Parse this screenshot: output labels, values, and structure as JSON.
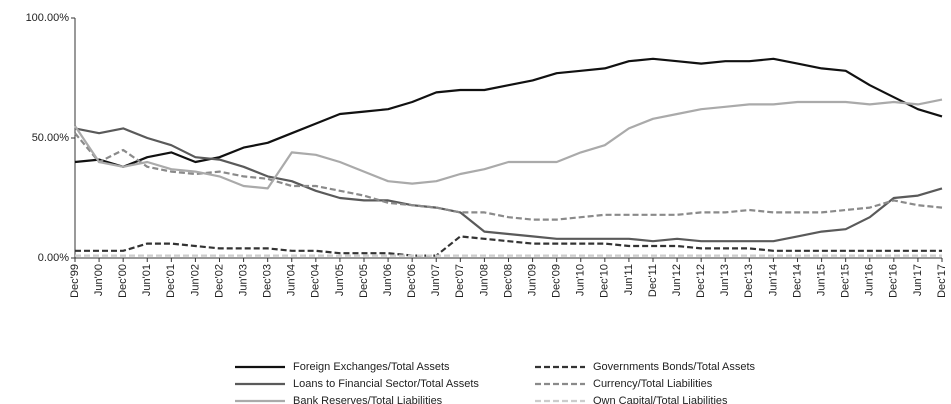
{
  "chart_data": {
    "type": "line",
    "categories": [
      "Dec'99",
      "Jun'00",
      "Dec'00",
      "Jun'01",
      "Dec'01",
      "Jun'02",
      "Dec'02",
      "Jun'03",
      "Dec'03",
      "Jun'04",
      "Dec'04",
      "Jun'05",
      "Dec'05",
      "Jun'06",
      "Dec'06",
      "Jun'07",
      "Dec'07",
      "Jun'08",
      "Dec'08",
      "Jun'09",
      "Dec'09",
      "Jun'10",
      "Dec'10",
      "Jun'11",
      "Dec'11",
      "Jun'12",
      "Dec'12",
      "Jun'13",
      "Dec'13",
      "Jun'14",
      "Dec'14",
      "Jun'15",
      "Dec'15",
      "Jun'16",
      "Dec'16",
      "Jun'17",
      "Dec'17"
    ],
    "series": [
      {
        "name": "Foreign Exchanges/Total Assets",
        "color": "#111111",
        "dashed": false,
        "values": [
          40,
          41,
          38,
          42,
          44,
          40,
          42,
          46,
          48,
          52,
          56,
          60,
          61,
          62,
          65,
          69,
          70,
          70,
          72,
          74,
          77,
          78,
          79,
          82,
          83,
          82,
          81,
          82,
          82,
          83,
          81,
          79,
          78,
          72,
          67,
          62,
          59
        ]
      },
      {
        "name": "Governments Bonds/Total Assets",
        "color": "#333333",
        "dashed": true,
        "values": [
          3,
          3,
          3,
          6,
          6,
          5,
          4,
          4,
          4,
          3,
          3,
          2,
          2,
          2,
          1,
          1,
          9,
          8,
          7,
          6,
          6,
          6,
          6,
          5,
          5,
          5,
          4,
          4,
          4,
          3,
          3,
          3,
          3,
          3,
          3,
          3,
          3
        ]
      },
      {
        "name": "Loans to Financial Sector/Total Assets",
        "color": "#5a5a5a",
        "dashed": false,
        "values": [
          54,
          52,
          54,
          50,
          47,
          42,
          41,
          38,
          34,
          32,
          28,
          25,
          24,
          24,
          22,
          21,
          19,
          11,
          10,
          9,
          8,
          8,
          8,
          8,
          7,
          8,
          7,
          7,
          7,
          7,
          9,
          11,
          12,
          17,
          25,
          26,
          29
        ]
      },
      {
        "name": "Currency/Total Liabilities",
        "color": "#8a8a8a",
        "dashed": true,
        "values": [
          52,
          40,
          45,
          38,
          36,
          35,
          36,
          34,
          33,
          30,
          30,
          28,
          26,
          23,
          22,
          21,
          19,
          19,
          17,
          16,
          16,
          17,
          18,
          18,
          18,
          18,
          19,
          19,
          20,
          19,
          19,
          19,
          20,
          21,
          24,
          22,
          21
        ]
      },
      {
        "name": "Bank Reserves/Total Liabilities",
        "color": "#aaaaaa",
        "dashed": false,
        "values": [
          55,
          40,
          38,
          40,
          37,
          36,
          34,
          30,
          29,
          44,
          43,
          40,
          36,
          32,
          31,
          32,
          35,
          37,
          40,
          40,
          40,
          44,
          47,
          54,
          58,
          60,
          62,
          63,
          64,
          64,
          65,
          65,
          65,
          64,
          65,
          64,
          66
        ]
      },
      {
        "name": "Own Capital/Total Liabilities",
        "color": "#cccccc",
        "dashed": true,
        "values": [
          1,
          1,
          1,
          1,
          1,
          1,
          1,
          1,
          1,
          1,
          1,
          1,
          1,
          1,
          1,
          1,
          1,
          1,
          1,
          1,
          1,
          1,
          1,
          1,
          1,
          1,
          1,
          1,
          1,
          1,
          1,
          1,
          1,
          1,
          1,
          1,
          1
        ]
      }
    ],
    "ylim": [
      0,
      100
    ],
    "yticks": [
      {
        "value": 0,
        "label": "0.00%"
      },
      {
        "value": 50,
        "label": "50.00%"
      },
      {
        "value": 100,
        "label": "100.00%"
      }
    ],
    "grid": false
  }
}
